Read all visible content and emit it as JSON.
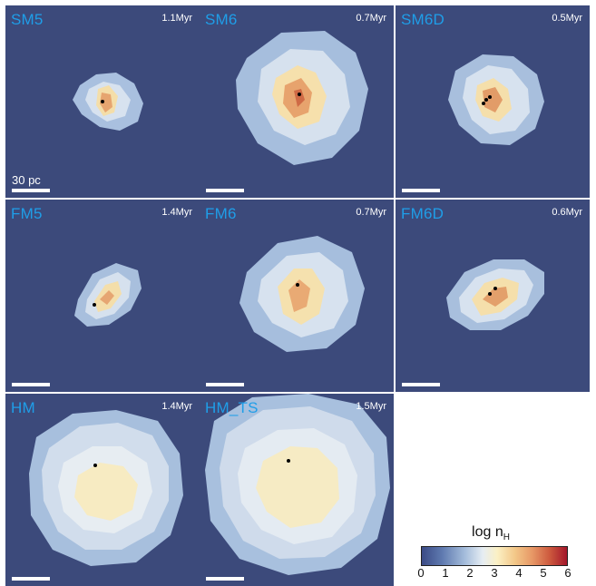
{
  "panels": [
    {
      "label": "SM5",
      "time": "1.1Myr",
      "scale": "30 pc"
    },
    {
      "label": "SM6",
      "time": "0.7Myr",
      "scale": ""
    },
    {
      "label": "SM6D",
      "time": "0.5Myr",
      "scale": ""
    },
    {
      "label": "FM5",
      "time": "1.4Myr",
      "scale": ""
    },
    {
      "label": "FM6",
      "time": "0.7Myr",
      "scale": ""
    },
    {
      "label": "FM6D",
      "time": "0.6Myr",
      "scale": ""
    },
    {
      "label": "HM",
      "time": "1.4Myr",
      "scale": ""
    },
    {
      "label": "HM_TS",
      "time": "1.5Myr",
      "scale": ""
    }
  ],
  "colorbar": {
    "title": "log n",
    "title_sub": "H",
    "ticks": [
      "0",
      "1",
      "2",
      "3",
      "4",
      "5",
      "6"
    ]
  },
  "colors": {
    "background": "#3c4a7b",
    "label": "#1f9ee8"
  }
}
